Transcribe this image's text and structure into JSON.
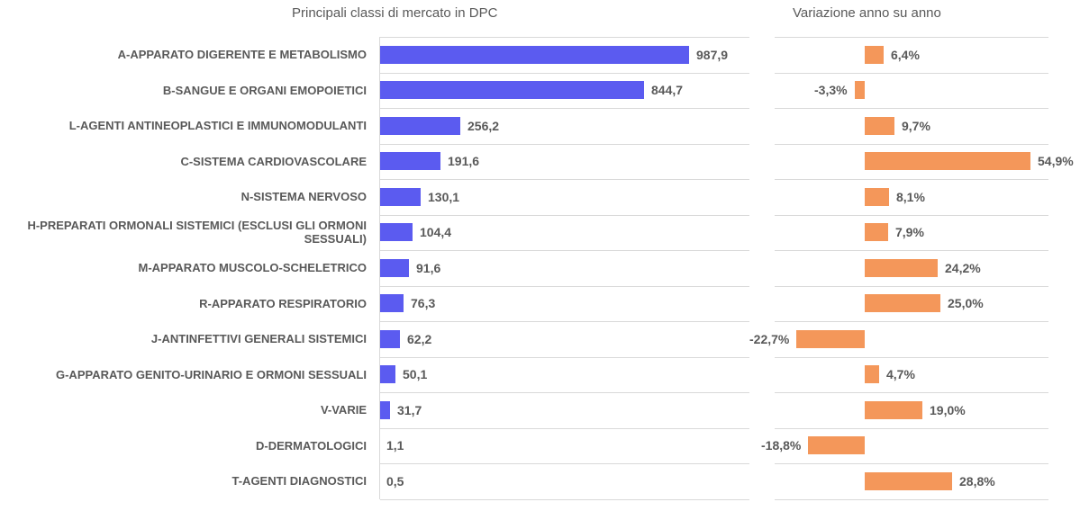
{
  "chart_data": [
    {
      "type": "bar",
      "orientation": "horizontal",
      "title": "Principali classi di mercato in DPC",
      "categories": [
        "A-APPARATO DIGERENTE E METABOLISMO",
        "B-SANGUE E ORGANI EMOPOIETICI",
        "L-AGENTI ANTINEOPLASTICI E IMMUNOMODULANTI",
        "C-SISTEMA CARDIOVASCOLARE",
        "N-SISTEMA NERVOSO",
        "H-PREPARATI ORMONALI SISTEMICI (ESCLUSI GLI ORMONI SESSUALI)",
        "M-APPARATO MUSCOLO-SCHELETRICO",
        "R-APPARATO RESPIRATORIO",
        "J-ANTINFETTIVI GENERALI SISTEMICI",
        "G-APPARATO GENITO-URINARIO E ORMONI SESSUALI",
        "V-VARIE",
        "D-DERMATOLOGICI",
        "T-AGENTI DIAGNOSTICI"
      ],
      "values": [
        987.9,
        844.7,
        256.2,
        191.6,
        130.1,
        104.4,
        91.6,
        76.3,
        62.2,
        50.1,
        31.7,
        1.1,
        0.5
      ],
      "labels": [
        "987,9",
        "844,7",
        "256,2",
        "191,6",
        "130,1",
        "104,4",
        "91,6",
        "76,3",
        "62,2",
        "50,1",
        "31,7",
        "1,1",
        "0,5"
      ],
      "xlim": [
        0,
        1000
      ],
      "color": "#5b5bf0"
    },
    {
      "type": "bar",
      "orientation": "horizontal",
      "title": "Variazione anno su anno",
      "unit": "%",
      "values": [
        6.4,
        -3.3,
        9.7,
        54.9,
        8.1,
        7.9,
        24.2,
        25.0,
        -22.7,
        4.7,
        19.0,
        -18.8,
        28.8
      ],
      "labels": [
        "6,4%",
        "-3,3%",
        "9,7%",
        "54,9%",
        "8,1%",
        "7,9%",
        "24,2%",
        "25,0%",
        "-22,7%",
        "4,7%",
        "19,0%",
        "-18,8%",
        "28,8%"
      ],
      "xlim": [
        -30,
        60
      ],
      "color": "#f4975a"
    }
  ]
}
